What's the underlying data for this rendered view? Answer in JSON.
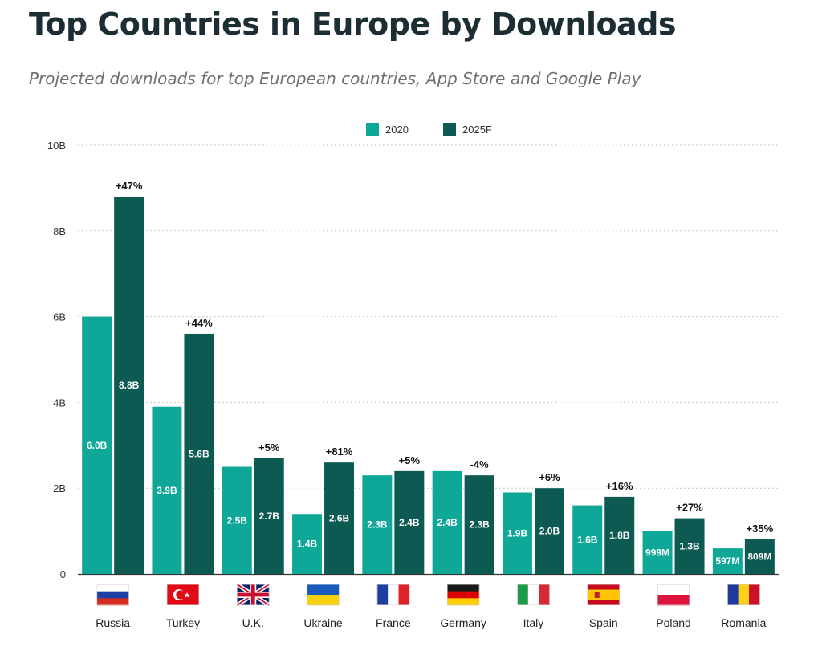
{
  "header": {
    "title": "Top Countries in Europe by Downloads",
    "subtitle": "Projected downloads for top European countries, App Store and Google Play"
  },
  "chart_data": {
    "type": "bar",
    "title": "Top Countries in Europe by Downloads",
    "subtitle": "Projected downloads for top European countries, App Store and Google Play",
    "categories": [
      "Russia",
      "Turkey",
      "U.K.",
      "Ukraine",
      "France",
      "Germany",
      "Italy",
      "Spain",
      "Poland",
      "Romania"
    ],
    "category_icons": [
      "russia-flag-icon",
      "turkey-flag-icon",
      "uk-flag-icon",
      "ukraine-flag-icon",
      "france-flag-icon",
      "germany-flag-icon",
      "italy-flag-icon",
      "spain-flag-icon",
      "poland-flag-icon",
      "romania-flag-icon"
    ],
    "series": [
      {
        "name": "2020",
        "color": "#0fa898",
        "values": [
          6.0,
          3.9,
          2.5,
          1.4,
          2.3,
          2.4,
          1.9,
          1.6,
          0.999,
          0.597
        ],
        "labels": [
          "6.0B",
          "3.9B",
          "2.5B",
          "1.4B",
          "2.3B",
          "2.4B",
          "1.9B",
          "1.6B",
          "999M",
          "597M"
        ]
      },
      {
        "name": "2025F",
        "color": "#0d5a52",
        "values": [
          8.8,
          5.6,
          2.7,
          2.6,
          2.4,
          2.3,
          2.0,
          1.8,
          1.3,
          0.809
        ],
        "labels": [
          "8.8B",
          "5.6B",
          "2.7B",
          "2.6B",
          "2.4B",
          "2.3B",
          "2.0B",
          "1.8B",
          "1.3B",
          "809M"
        ]
      }
    ],
    "change_labels": [
      "+47%",
      "+44%",
      "+5%",
      "+81%",
      "+5%",
      "-4%",
      "+6%",
      "+16%",
      "+27%",
      "+35%"
    ],
    "y_unit": "billions",
    "ylim": [
      0,
      10
    ],
    "y_ticks": [
      0,
      2,
      4,
      6,
      8,
      10
    ],
    "y_tick_labels": [
      "0",
      "2B",
      "4B",
      "6B",
      "8B",
      "10B"
    ],
    "xlabel": "",
    "ylabel": "",
    "grid": "horizontal dotted",
    "legend_position": "top-center"
  }
}
